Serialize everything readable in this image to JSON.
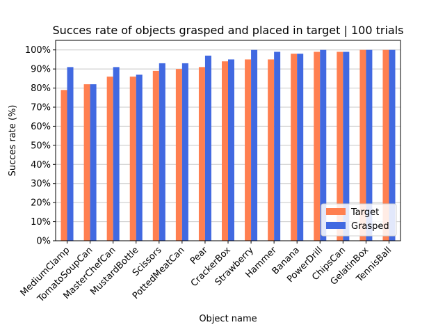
{
  "chart_data": {
    "type": "bar",
    "title": "Succes rate of objects grasped and placed in target | 100 trials",
    "xlabel": "Object name",
    "ylabel": "Succes rate (%)",
    "ylim": [
      0,
      105
    ],
    "yticks": [
      "0%",
      "10%",
      "20%",
      "30%",
      "40%",
      "50%",
      "60%",
      "70%",
      "80%",
      "90%",
      "100%"
    ],
    "grid": "horizontal",
    "legend_position": "lower-right",
    "categories": [
      "MediumClamp",
      "TomatoSoupCan",
      "MasterChefCan",
      "MustardBottle",
      "Scissors",
      "PottedMeatCan",
      "Pear",
      "CrackerBox",
      "Strawberry",
      "Hammer",
      "Banana",
      "PowerDrill",
      "ChipsCan",
      "GelatinBox",
      "TennisBall"
    ],
    "series": [
      {
        "name": "Target",
        "color": "#ff7f50",
        "values": [
          79,
          82,
          86,
          86,
          89,
          90,
          91,
          94,
          95,
          95,
          98,
          99,
          99,
          100,
          100
        ]
      },
      {
        "name": "Grasped",
        "color": "#4169e1",
        "values": [
          91,
          82,
          91,
          87,
          93,
          93,
          97,
          95,
          100,
          99,
          98,
          100,
          99,
          100,
          100
        ]
      }
    ]
  }
}
